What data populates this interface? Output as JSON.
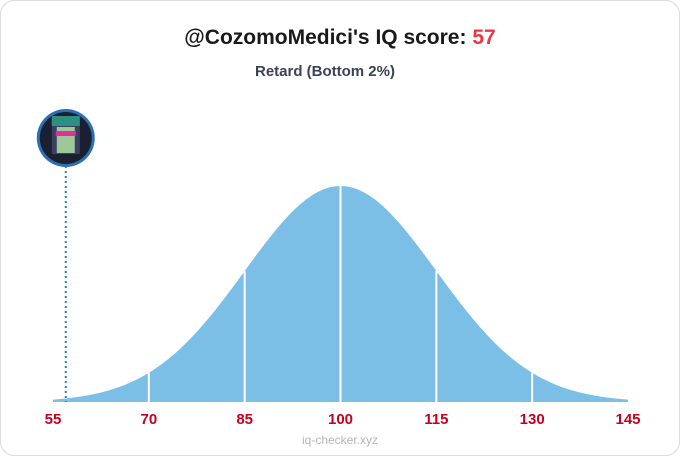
{
  "chart_data": {
    "type": "distribution",
    "title": "@CozomoMedici's IQ score:",
    "score": 57,
    "subtitle": "Retard (Bottom 2%)",
    "footer": "iq-checker.xyz",
    "xlim": [
      55,
      145
    ],
    "xticks": [
      55,
      70,
      85,
      100,
      115,
      130,
      145
    ],
    "color": "#7bbfe6",
    "tick_color": "#c8001e",
    "score_color": "#e8394a"
  }
}
